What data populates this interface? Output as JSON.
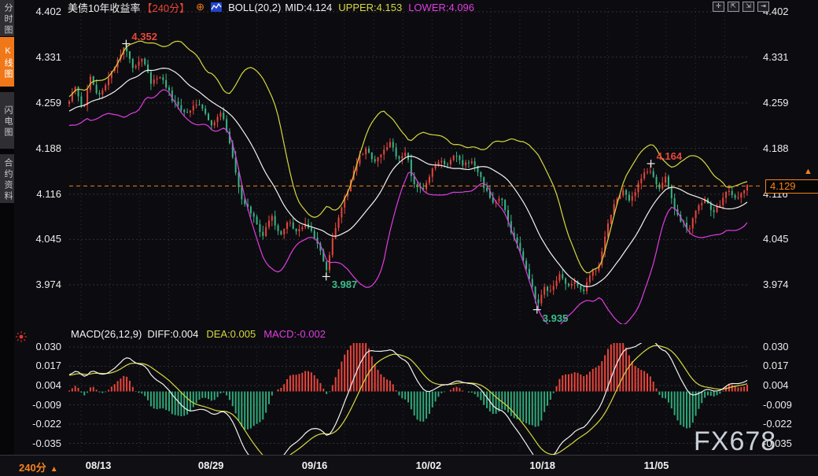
{
  "header": {
    "title": "美债10年收益率",
    "period_tag": "【240分】",
    "boll_label": "BOLL(20,2)",
    "mid_label": "MID:4.124",
    "upper_label": "UPPER:4.153",
    "lower_label": "LOWER:4.096"
  },
  "sidebar": {
    "items": [
      {
        "label": "分时图",
        "active": false
      },
      {
        "label": "K线图",
        "active": true
      },
      {
        "label": "闪电图",
        "active": false
      },
      {
        "label": "合约资料",
        "active": false
      }
    ]
  },
  "macd_header": {
    "formula": "MACD(26,12,9)",
    "diff": "DIFF:0.004",
    "dea": "DEA:0.005",
    "macd": "MACD:-0.002"
  },
  "bottom_bar": {
    "period": "240分",
    "arrow": "▲"
  },
  "watermark": "FX678",
  "price_box": {
    "value": "4.129"
  },
  "colors": {
    "up": "#e8453c",
    "down": "#38b584",
    "boll_mid": "#f2f2f2",
    "boll_upper": "#d8d840",
    "boll_lower": "#e03ce0",
    "macd_diff": "#f2f2f2",
    "macd_dea": "#d8d840",
    "hist_pos": "#e8453c",
    "hist_neg": "#2fa878",
    "grid": "#2f2f36",
    "accent": "#f5821f",
    "price_line": "#f08018",
    "anno_high": "#e8483c",
    "anno_low": "#3dbd8c",
    "cross": "#f0f0f0"
  },
  "chart_data": {
    "type": "candlestick",
    "title": "美债10年收益率 240分 K线 with BOLL(20,2) and MACD(26,12,9)",
    "interval": "240min",
    "bars_estimate": 225,
    "y_axis": {
      "ticks": [
        "4.402",
        "4.331",
        "4.259",
        "4.188",
        "4.116",
        "4.045",
        "3.974"
      ],
      "max": 4.402,
      "min": 3.974
    },
    "macd_axis": {
      "ticks": [
        "0.030",
        "0.017",
        "0.004",
        "-0.009",
        "-0.022",
        "-0.035"
      ],
      "max": 0.03,
      "min": -0.035
    },
    "x_labels": [
      {
        "label": "08/13",
        "pos": 0.043
      },
      {
        "label": "08/29",
        "pos": 0.209
      },
      {
        "label": "09/16",
        "pos": 0.362
      },
      {
        "label": "10/02",
        "pos": 0.53
      },
      {
        "label": "10/18",
        "pos": 0.698
      },
      {
        "label": "11/05",
        "pos": 0.866
      }
    ],
    "indicators": {
      "bollinger": {
        "period": 20,
        "mult": 2,
        "mid": 4.124,
        "upper": 4.153,
        "lower": 4.096
      },
      "macd": {
        "fast": 26,
        "slow": 12,
        "signal": 9,
        "diff": 0.004,
        "dea": 0.005,
        "hist": -0.002
      }
    },
    "last_price": 4.129,
    "annotations": [
      {
        "text": "4.352",
        "value": 4.352,
        "x": 0.084,
        "color": "#e8483c",
        "placement": "above"
      },
      {
        "text": "3.987",
        "value": 3.987,
        "x": 0.379,
        "color": "#3dbd8c",
        "placement": "below"
      },
      {
        "text": "3.935",
        "value": 3.935,
        "x": 0.69,
        "color": "#3dbd8c",
        "placement": "below"
      },
      {
        "text": "4.164",
        "value": 4.164,
        "x": 0.858,
        "color": "#e8483c",
        "placement": "above"
      }
    ],
    "price_keyframes": [
      [
        0,
        4.265
      ],
      [
        0.008,
        4.285
      ],
      [
        0.02,
        4.245
      ],
      [
        0.031,
        4.3
      ],
      [
        0.043,
        4.265
      ],
      [
        0.06,
        4.305
      ],
      [
        0.074,
        4.33
      ],
      [
        0.084,
        4.352
      ],
      [
        0.093,
        4.315
      ],
      [
        0.107,
        4.33
      ],
      [
        0.121,
        4.29
      ],
      [
        0.136,
        4.302
      ],
      [
        0.153,
        4.262
      ],
      [
        0.171,
        4.242
      ],
      [
        0.19,
        4.262
      ],
      [
        0.209,
        4.225
      ],
      [
        0.225,
        4.243
      ],
      [
        0.241,
        4.175
      ],
      [
        0.255,
        4.105
      ],
      [
        0.271,
        4.082
      ],
      [
        0.285,
        4.052
      ],
      [
        0.299,
        4.08
      ],
      [
        0.311,
        4.052
      ],
      [
        0.323,
        4.072
      ],
      [
        0.336,
        4.058
      ],
      [
        0.35,
        4.072
      ],
      [
        0.362,
        4.048
      ],
      [
        0.371,
        4.028
      ],
      [
        0.379,
        3.992
      ],
      [
        0.39,
        4.055
      ],
      [
        0.403,
        4.1
      ],
      [
        0.415,
        4.135
      ],
      [
        0.427,
        4.172
      ],
      [
        0.438,
        4.19
      ],
      [
        0.45,
        4.163
      ],
      [
        0.462,
        4.18
      ],
      [
        0.473,
        4.198
      ],
      [
        0.485,
        4.172
      ],
      [
        0.497,
        4.18
      ],
      [
        0.508,
        4.132
      ],
      [
        0.522,
        4.122
      ],
      [
        0.534,
        4.152
      ],
      [
        0.545,
        4.17
      ],
      [
        0.557,
        4.158
      ],
      [
        0.568,
        4.178
      ],
      [
        0.58,
        4.16
      ],
      [
        0.592,
        4.17
      ],
      [
        0.603,
        4.152
      ],
      [
        0.615,
        4.12
      ],
      [
        0.626,
        4.102
      ],
      [
        0.638,
        4.112
      ],
      [
        0.65,
        4.062
      ],
      [
        0.661,
        4.042
      ],
      [
        0.673,
        4.002
      ],
      [
        0.682,
        3.972
      ],
      [
        0.69,
        3.94
      ],
      [
        0.7,
        3.97
      ],
      [
        0.711,
        3.962
      ],
      [
        0.723,
        3.99
      ],
      [
        0.734,
        3.972
      ],
      [
        0.746,
        3.982
      ],
      [
        0.758,
        3.962
      ],
      [
        0.769,
        3.99
      ],
      [
        0.781,
        4.002
      ],
      [
        0.792,
        4.06
      ],
      [
        0.804,
        4.1
      ],
      [
        0.816,
        4.122
      ],
      [
        0.827,
        4.102
      ],
      [
        0.839,
        4.132
      ],
      [
        0.85,
        4.152
      ],
      [
        0.858,
        4.16
      ],
      [
        0.868,
        4.122
      ],
      [
        0.879,
        4.142
      ],
      [
        0.891,
        4.1
      ],
      [
        0.902,
        4.072
      ],
      [
        0.914,
        4.062
      ],
      [
        0.926,
        4.092
      ],
      [
        0.937,
        4.112
      ],
      [
        0.949,
        4.082
      ],
      [
        0.96,
        4.102
      ],
      [
        0.972,
        4.122
      ],
      [
        0.984,
        4.105
      ],
      [
        1,
        4.129
      ]
    ]
  }
}
